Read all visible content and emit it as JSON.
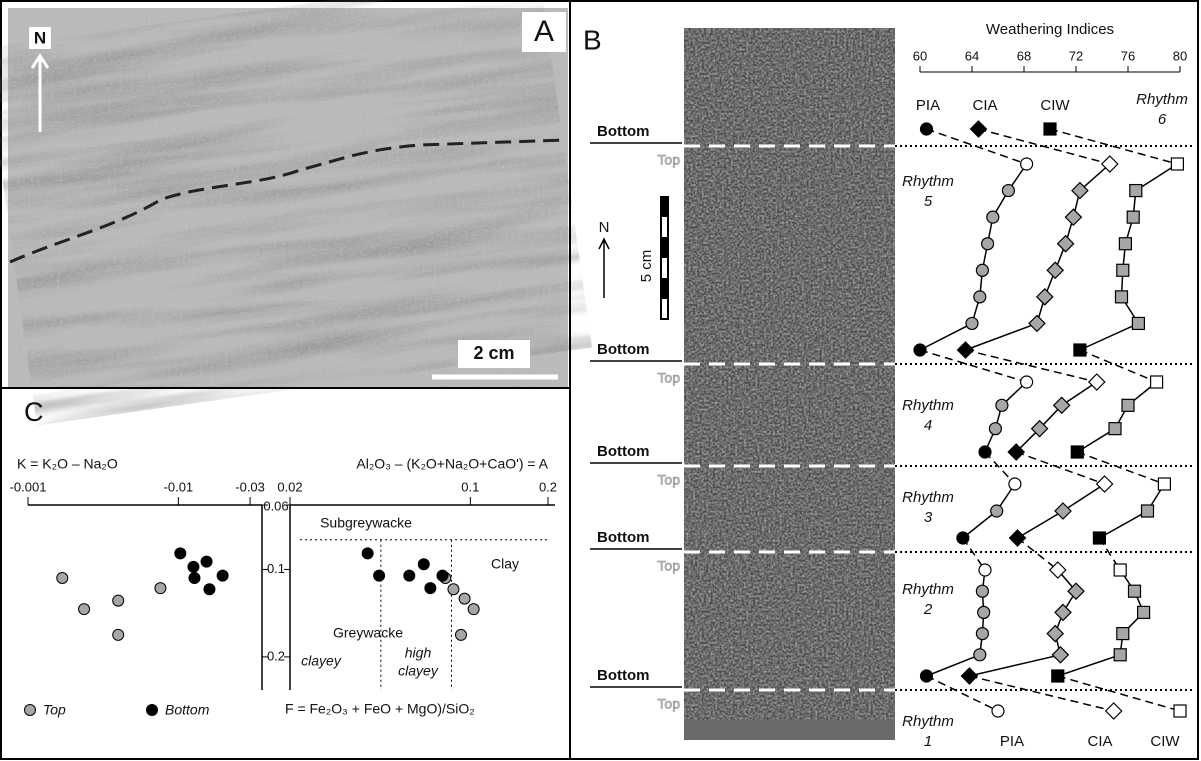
{
  "panel_a": {
    "label": "A",
    "north": "N",
    "scale": "2 cm"
  },
  "panel_b": {
    "label": "B",
    "north": "N",
    "scale": "5 cm",
    "bottom_label": "Bottom",
    "top_label": "Top"
  },
  "weathering": {
    "type": "line",
    "title": "Weathering Indices",
    "xlim": [
      60,
      80
    ],
    "xticks": [
      60,
      64,
      68,
      72,
      76,
      80
    ],
    "series": [
      {
        "name": "PIA",
        "marker": "circle"
      },
      {
        "name": "CIA",
        "marker": "diamond"
      },
      {
        "name": "CIW",
        "marker": "square"
      }
    ],
    "fills": {
      "top": "#ffffff",
      "middle": "#a6a6a6",
      "bottom": "#000000"
    },
    "rhythms": [
      {
        "label": "Rhythm",
        "number": 6,
        "values": [
          [
            60.5
          ],
          [
            64.5
          ],
          [
            70
          ]
        ]
      },
      {
        "label": "Rhythm",
        "number": 5,
        "values": [
          [
            68.2,
            66.8,
            65.6,
            65.2,
            64.8,
            64.6,
            64.0,
            60.0
          ],
          [
            74.6,
            72.3,
            71.8,
            71.2,
            70.4,
            69.6,
            69.0,
            63.5
          ],
          [
            79.8,
            76.6,
            76.4,
            75.8,
            75.6,
            75.5,
            76.8,
            72.3
          ]
        ]
      },
      {
        "label": "Rhythm",
        "number": 4,
        "values": [
          [
            68.2,
            66.3,
            65.8,
            65.0
          ],
          [
            73.6,
            70.9,
            69.2,
            67.4
          ],
          [
            78.2,
            76.0,
            75.0,
            72.1
          ]
        ]
      },
      {
        "label": "Rhythm",
        "number": 3,
        "values": [
          [
            67.3,
            65.9,
            63.3
          ],
          [
            74.2,
            71.0,
            67.5
          ],
          [
            78.8,
            77.5,
            73.8
          ]
        ]
      },
      {
        "label": "Rhythm",
        "number": 2,
        "values": [
          [
            65.0,
            64.8,
            64.9,
            64.8,
            64.6,
            60.5
          ],
          [
            70.6,
            72.0,
            71.0,
            70.4,
            70.8,
            63.8
          ],
          [
            75.4,
            76.5,
            77.2,
            75.6,
            75.4,
            70.6
          ]
        ]
      },
      {
        "label": "Rhythm",
        "number": 1,
        "values": [
          [
            66
          ],
          [
            74.9
          ],
          [
            80
          ]
        ]
      }
    ]
  },
  "panel_c": {
    "type": "scatter",
    "label": "C",
    "k_label": "K = K₂O – Na₂O",
    "a_label": "Al₂O₃ – (K₂O+Na₂O+CaO') = A",
    "f_label": "F = Fe₂O₃ + FeO + MgO)/SiO₂",
    "k_axis": {
      "xlim": [
        -0.001,
        -0.036
      ],
      "xticks": [
        -0.001,
        -0.01,
        -0.03
      ],
      "scale": "log"
    },
    "a_axis": {
      "xlim": [
        0.02,
        0.2
      ],
      "xticks": [
        0.02,
        0.1,
        0.2
      ],
      "scale": "log"
    },
    "f_axis": {
      "ylim": [
        0.06,
        0.26
      ],
      "yticks": [
        0.06,
        0.1,
        0.2
      ],
      "scale": "log"
    },
    "series": [
      {
        "name": "Top",
        "color": "#a6a6a6",
        "k": {
          "x": [
            -0.00169,
            -0.00236,
            -0.00398,
            -0.00398,
            -0.0076
          ],
          "y": [
            0.107,
            0.137,
            0.128,
            0.168,
            0.116
          ]
        },
        "a": {
          "x": [
            0.08,
            0.086,
            0.095,
            0.103,
            0.092
          ],
          "y": [
            0.107,
            0.117,
            0.126,
            0.137,
            0.168
          ]
        }
      },
      {
        "name": "Bottom",
        "color": "#000000",
        "k": {
          "x": [
            -0.0103,
            -0.0126,
            -0.0154,
            -0.0128,
            -0.0161,
            -0.0197
          ],
          "y": [
            0.088,
            0.098,
            0.094,
            0.107,
            0.117,
            0.105
          ]
        },
        "a": {
          "x": [
            0.04,
            0.0443,
            0.058,
            0.066,
            0.07,
            0.078
          ],
          "y": [
            0.088,
            0.105,
            0.105,
            0.096,
            0.116,
            0.105
          ]
        }
      }
    ],
    "boundaries": {
      "f": 0.079,
      "a": [
        0.045,
        0.0845
      ]
    },
    "fields": [
      "Subgreywacke",
      "Clay",
      "Greywacke",
      "clayey",
      "high",
      "clayey"
    ]
  }
}
